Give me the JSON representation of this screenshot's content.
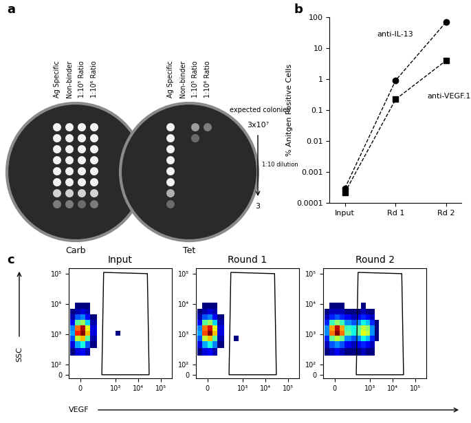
{
  "panels": [
    "a",
    "b",
    "c"
  ],
  "plates": {
    "columns": [
      "Ag Specific",
      "Non-binder",
      "1:10⁵ Ratio",
      "1:10⁶ Ratio"
    ],
    "plates": [
      {
        "name": "Carb",
        "growth": [
          [
            1,
            1,
            1,
            1
          ],
          [
            1,
            1,
            1,
            1
          ],
          [
            1,
            1,
            1,
            1
          ],
          [
            1,
            1,
            1,
            1
          ],
          [
            1,
            1,
            1,
            1
          ],
          [
            1,
            1,
            1,
            1
          ],
          [
            0.8,
            0.8,
            0.8,
            0.8
          ],
          [
            0.3,
            0.3,
            0.2,
            0.3
          ]
        ]
      },
      {
        "name": "Tet",
        "growth": [
          [
            1,
            0,
            0.5,
            0.3
          ],
          [
            1,
            0,
            0.2,
            0
          ],
          [
            1,
            0,
            0,
            0
          ],
          [
            1,
            0,
            0,
            0
          ],
          [
            1,
            0,
            0,
            0
          ],
          [
            1,
            0,
            0,
            0
          ],
          [
            0.6,
            0,
            0,
            0
          ],
          [
            0.2,
            0,
            0,
            0
          ]
        ]
      }
    ],
    "expected_colonies": {
      "label": "expected colonies",
      "top": "3x10⁷",
      "step": "1:10 dilution",
      "bottom": "3"
    }
  },
  "chart_data": [
    {
      "type": "line",
      "ylabel": "% Anitgen Positive Cells",
      "categories": [
        "Input",
        "Rd 1",
        "Rd 2"
      ],
      "series": [
        {
          "name": "anti-IL-13",
          "color": "#000000",
          "marker": "circle",
          "line_style": "dashed",
          "values": [
            0.0003,
            0.9,
            70
          ]
        },
        {
          "name": "anti-VEGF.1",
          "color": "#000000",
          "marker": "square",
          "line_style": "dashed",
          "values": [
            0.00022,
            0.22,
            4
          ]
        }
      ],
      "log": "y",
      "ylim": [
        0.0001,
        100
      ],
      "yticks": [
        0.0001,
        0.001,
        0.01,
        0.1,
        1,
        10,
        100
      ]
    },
    {
      "type": "heatmap",
      "title": "Input",
      "xlabel": "VEGF",
      "ylabel": "SSC",
      "log": true,
      "xlim": [
        -90,
        300000
      ],
      "ylim": [
        -35,
        150000
      ],
      "xticks": [
        0,
        {
          "value": 1000,
          "label": "10³"
        },
        {
          "value": 10000,
          "label": "10⁴"
        },
        {
          "value": 100000,
          "label": "10⁵"
        }
      ],
      "yticks": [
        0,
        {
          "value": 100,
          "label": "10²"
        },
        {
          "value": 1000,
          "label": "10³"
        },
        {
          "value": 10000,
          "label": "10⁴"
        },
        {
          "value": 100000,
          "label": "10⁵"
        }
      ],
      "gate": [
        [
          250,
          0
        ],
        [
          300,
          110000
        ],
        [
          25000,
          100000
        ],
        [
          30000,
          0
        ]
      ],
      "x_edges": [
        -80,
        -40,
        0,
        40,
        80,
        150,
        250,
        400,
        650,
        1000,
        1600,
        2500
      ],
      "y_edges": [
        200,
        350,
        600,
        900,
        1300,
        2000,
        3000,
        4500,
        7000,
        11000
      ],
      "counts": [
        [
          1,
          3,
          4,
          2,
          0,
          0,
          0,
          0,
          0,
          0,
          0
        ],
        [
          3,
          8,
          10,
          6,
          1,
          0,
          0,
          0,
          0,
          0,
          0
        ],
        [
          6,
          15,
          18,
          12,
          2,
          0,
          0,
          0,
          0,
          0,
          0
        ],
        [
          8,
          22,
          25,
          18,
          3,
          0,
          0,
          0,
          0,
          1,
          0
        ],
        [
          7,
          20,
          24,
          16,
          3,
          0,
          0,
          0,
          0,
          0,
          0
        ],
        [
          4,
          12,
          14,
          9,
          2,
          0,
          0,
          0,
          0,
          0,
          0
        ],
        [
          2,
          6,
          7,
          4,
          1,
          0,
          0,
          0,
          0,
          0,
          0
        ],
        [
          1,
          2,
          3,
          2,
          0,
          0,
          0,
          0,
          0,
          0,
          0
        ],
        [
          0,
          1,
          1,
          1,
          0,
          0,
          0,
          0,
          0,
          0,
          0
        ]
      ]
    },
    {
      "type": "heatmap",
      "title": "Round 1",
      "log": true,
      "xlim": [
        -90,
        300000
      ],
      "ylim": [
        -35,
        150000
      ],
      "xticks": [
        0,
        {
          "value": 1000,
          "label": "10³"
        },
        {
          "value": 10000,
          "label": "10⁴"
        },
        {
          "value": 100000,
          "label": "10⁵"
        }
      ],
      "yticks": [
        0,
        {
          "value": 100,
          "label": "10²"
        },
        {
          "value": 1000,
          "label": "10³"
        },
        {
          "value": 10000,
          "label": "10⁴"
        },
        {
          "value": 100000,
          "label": "10⁵"
        }
      ],
      "gate": [
        [
          250,
          0
        ],
        [
          300,
          110000
        ],
        [
          25000,
          100000
        ],
        [
          30000,
          0
        ]
      ],
      "x_edges": [
        -80,
        -40,
        0,
        40,
        80,
        150,
        250,
        400,
        650,
        1000,
        1600,
        2500
      ],
      "y_edges": [
        200,
        350,
        600,
        900,
        1300,
        2000,
        3000,
        4500,
        7000,
        11000
      ],
      "counts": [
        [
          1,
          3,
          4,
          2,
          0,
          0,
          0,
          0,
          0,
          0,
          0
        ],
        [
          3,
          8,
          10,
          7,
          1,
          0,
          0,
          0,
          0,
          0,
          0
        ],
        [
          6,
          15,
          18,
          12,
          2,
          0,
          0,
          1,
          0,
          0,
          0
        ],
        [
          8,
          21,
          25,
          18,
          3,
          0,
          0,
          0,
          0,
          0,
          0
        ],
        [
          7,
          20,
          23,
          16,
          3,
          0,
          0,
          0,
          0,
          0,
          0
        ],
        [
          4,
          12,
          14,
          9,
          2,
          0,
          0,
          0,
          0,
          0,
          0
        ],
        [
          2,
          6,
          7,
          4,
          1,
          0,
          0,
          0,
          0,
          0,
          0
        ],
        [
          1,
          2,
          3,
          2,
          0,
          0,
          0,
          0,
          0,
          0,
          0
        ],
        [
          0,
          1,
          1,
          1,
          0,
          0,
          0,
          0,
          0,
          0,
          0
        ]
      ]
    },
    {
      "type": "heatmap",
      "title": "Round 2",
      "log": true,
      "xlim": [
        -90,
        300000
      ],
      "ylim": [
        -35,
        150000
      ],
      "xticks": [
        0,
        {
          "value": 1000,
          "label": "10³"
        },
        {
          "value": 10000,
          "label": "10⁴"
        },
        {
          "value": 100000,
          "label": "10⁵"
        }
      ],
      "yticks": [
        0,
        {
          "value": 100,
          "label": "10²"
        },
        {
          "value": 1000,
          "label": "10³"
        },
        {
          "value": 10000,
          "label": "10⁴"
        },
        {
          "value": 100000,
          "label": "10⁵"
        }
      ],
      "gate": [
        [
          250,
          0
        ],
        [
          300,
          110000
        ],
        [
          25000,
          100000
        ],
        [
          30000,
          0
        ]
      ],
      "x_edges": [
        -80,
        -40,
        0,
        40,
        80,
        150,
        250,
        400,
        650,
        1000,
        1600,
        2500
      ],
      "y_edges": [
        200,
        350,
        600,
        900,
        1300,
        2000,
        3000,
        4500,
        7000,
        11000
      ],
      "counts": [
        [
          1,
          2,
          3,
          2,
          1,
          1,
          1,
          2,
          1,
          1,
          0
        ],
        [
          2,
          5,
          6,
          5,
          3,
          2,
          3,
          4,
          3,
          2,
          0
        ],
        [
          4,
          10,
          12,
          10,
          6,
          5,
          6,
          8,
          7,
          4,
          1
        ],
        [
          6,
          16,
          20,
          16,
          10,
          8,
          10,
          13,
          12,
          6,
          1
        ],
        [
          6,
          15,
          19,
          15,
          9,
          8,
          10,
          12,
          11,
          6,
          1
        ],
        [
          4,
          9,
          11,
          9,
          6,
          5,
          6,
          8,
          7,
          4,
          1
        ],
        [
          2,
          4,
          5,
          4,
          3,
          2,
          3,
          4,
          3,
          2,
          0
        ],
        [
          1,
          2,
          2,
          2,
          1,
          1,
          1,
          2,
          1,
          1,
          0
        ],
        [
          0,
          1,
          1,
          1,
          0,
          0,
          0,
          1,
          0,
          0,
          0
        ]
      ]
    }
  ]
}
